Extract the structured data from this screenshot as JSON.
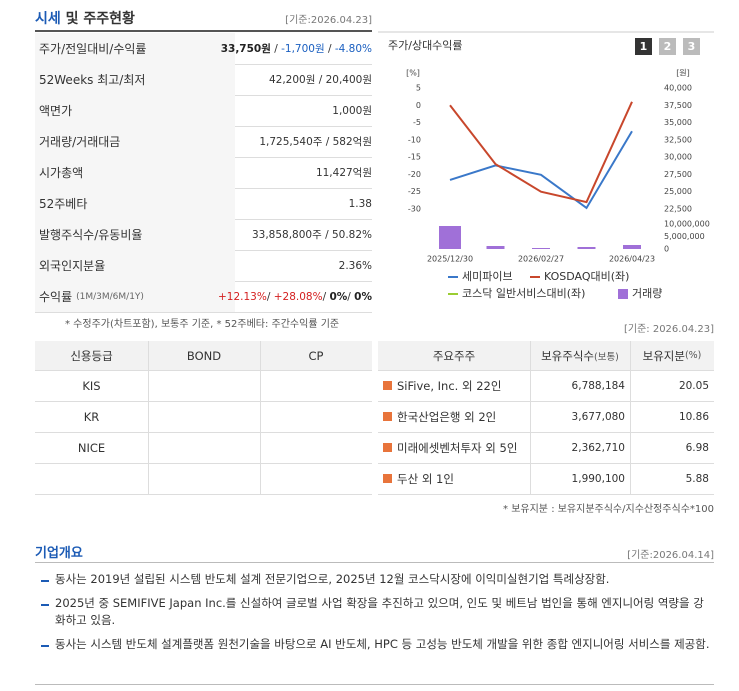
{
  "market": {
    "title_main": "시세",
    "title_rest": "및 주주현황",
    "date": "[기준:2026.04.23]",
    "rows": [
      {
        "label": "주가/전일대비/수익률",
        "parts": [
          {
            "text": "33,750원",
            "color": "#222222",
            "bold": true
          },
          {
            "text": " / "
          },
          {
            "text": "-1,700원",
            "color": "#1a5fc0"
          },
          {
            "text": " / "
          },
          {
            "text": "-4.80%",
            "color": "#1a5fc0"
          }
        ]
      },
      {
        "label": "52Weeks 최고/최저",
        "parts": [
          {
            "text": "42,200원 / 20,400원"
          }
        ]
      },
      {
        "label": "액면가",
        "parts": [
          {
            "text": "1,000원"
          }
        ]
      },
      {
        "label": "거래량/거래대금",
        "parts": [
          {
            "text": "1,725,540주 / 582억원"
          }
        ]
      },
      {
        "label": "시가총액",
        "parts": [
          {
            "text": "11,427억원"
          }
        ]
      },
      {
        "label": "52주베타",
        "parts": [
          {
            "text": "1.38"
          }
        ]
      },
      {
        "label": "발행주식수/유동비율",
        "parts": [
          {
            "text": "33,858,800주 / 50.82%"
          }
        ]
      },
      {
        "label": "외국인지분율",
        "parts": [
          {
            "text": "2.36%"
          }
        ]
      },
      {
        "label": "수익률",
        "sub": "(1M/3M/6M/1Y)",
        "parts": [
          {
            "text": "+12.13%",
            "color": "#d42020"
          },
          {
            "text": "/ "
          },
          {
            "text": "+28.08%",
            "color": "#d42020"
          },
          {
            "text": "/ "
          },
          {
            "text": "0%",
            "color": "#222222",
            "bold": true
          },
          {
            "text": "/ "
          },
          {
            "text": "0%",
            "color": "#222222",
            "bold": true
          }
        ]
      }
    ],
    "footnote": "* 수정주가(차트포함), 보통주 기준, * 52주베타: 주간수익률 기준"
  },
  "chart_data": {
    "type": "line",
    "title": "주가/상대수익률",
    "tabs": [
      "1",
      "2",
      "3"
    ],
    "ylabel": "[%]",
    "y2label": "[원]",
    "categories": [
      "2025/12/30",
      null,
      "2026/02/27",
      null,
      "2026/04/23"
    ],
    "ylim": [
      -30,
      5
    ],
    "yticks": [
      5,
      0,
      -5,
      -10,
      -15,
      -20,
      -25,
      -30
    ],
    "y2lim": [
      22500,
      40000
    ],
    "y2ticks": [
      {
        "value": 40000,
        "label": "40,000"
      },
      {
        "value": 37500,
        "label": "37,500"
      },
      {
        "value": 35000,
        "label": "35,000"
      },
      {
        "value": 32500,
        "label": "32,500"
      },
      {
        "value": 30000,
        "label": "30,000"
      },
      {
        "value": 27500,
        "label": "27,500"
      },
      {
        "value": 25000,
        "label": "25,000"
      },
      {
        "value": 22500,
        "label": "22,500"
      }
    ],
    "y3lim": [
      0,
      10000000
    ],
    "y3ticks": [
      {
        "value": 10000000,
        "label": "10,000,000"
      },
      {
        "value": 5000000,
        "label": "5,000,000"
      },
      0
    ],
    "grid": false,
    "series": [
      {
        "name": "세미파이브",
        "color": "#3a78c9",
        "axis": "y2",
        "values": [
          26700,
          28800,
          27450,
          22650,
          33750
        ]
      },
      {
        "name": "KOSDAQ대비(좌)",
        "color": "#c8472c",
        "axis": "y",
        "values": [
          0,
          -17,
          -25,
          -28,
          1
        ]
      },
      {
        "name": "코스닥 일반서비스대비(좌)",
        "color": "#9acd32",
        "axis": "y",
        "values": [
          null,
          null,
          null,
          null,
          null
        ]
      },
      {
        "name": "거래량",
        "color": "#a070d8",
        "axis": "y3",
        "type": "bar",
        "values": [
          9200000,
          1200000,
          400000,
          800000,
          1600000
        ]
      }
    ]
  },
  "chart_date": "[기준: 2026.04.23]",
  "credit": {
    "headers": [
      "신용등급",
      "BOND",
      "CP"
    ],
    "agencies": [
      "KIS",
      "KR",
      "NICE"
    ]
  },
  "shareholders": {
    "headers": [
      {
        "text": "주요주주"
      },
      {
        "text": "보유주식수",
        "sub": "(보통)"
      },
      {
        "text": "보유지분",
        "sub": "(%)"
      }
    ],
    "rows": [
      [
        "SiFive, Inc. 외 22인",
        "6,788,184",
        "20.05"
      ],
      [
        "한국산업은행 외 2인",
        "3,677,080",
        "10.86"
      ],
      [
        "미래에셋벤처투자 외 5인",
        "2,362,710",
        "6.98"
      ],
      [
        "두산 외 1인",
        "1,990,100",
        "5.88"
      ]
    ],
    "footnote": "* 보유지분 : 보유지분주식수/지수산정주식수*100"
  },
  "overview": {
    "title": "기업개요",
    "date": "[기준:2026.04.14]",
    "items": [
      "동사는 2019년 설립된 시스템 반도체 설계 전문기업으로, 2025년 12월 코스닥시장에 이익미실현기업 특례상장함.",
      "2025년 중 SEMIFIVE Japan Inc.를 신설하여 글로벌 사업 확장을 추진하고 있으며, 인도 및 베트남 법인을 통해 엔지니어링 역량을 강화하고 있음.",
      "동사는 시스템 반도체 설계플랫폼 원천기술을 바탕으로 AI 반도체, HPC 등 고성능 반도체 개발을 위한 종합 엔지니어링 서비스를 제공함."
    ]
  }
}
